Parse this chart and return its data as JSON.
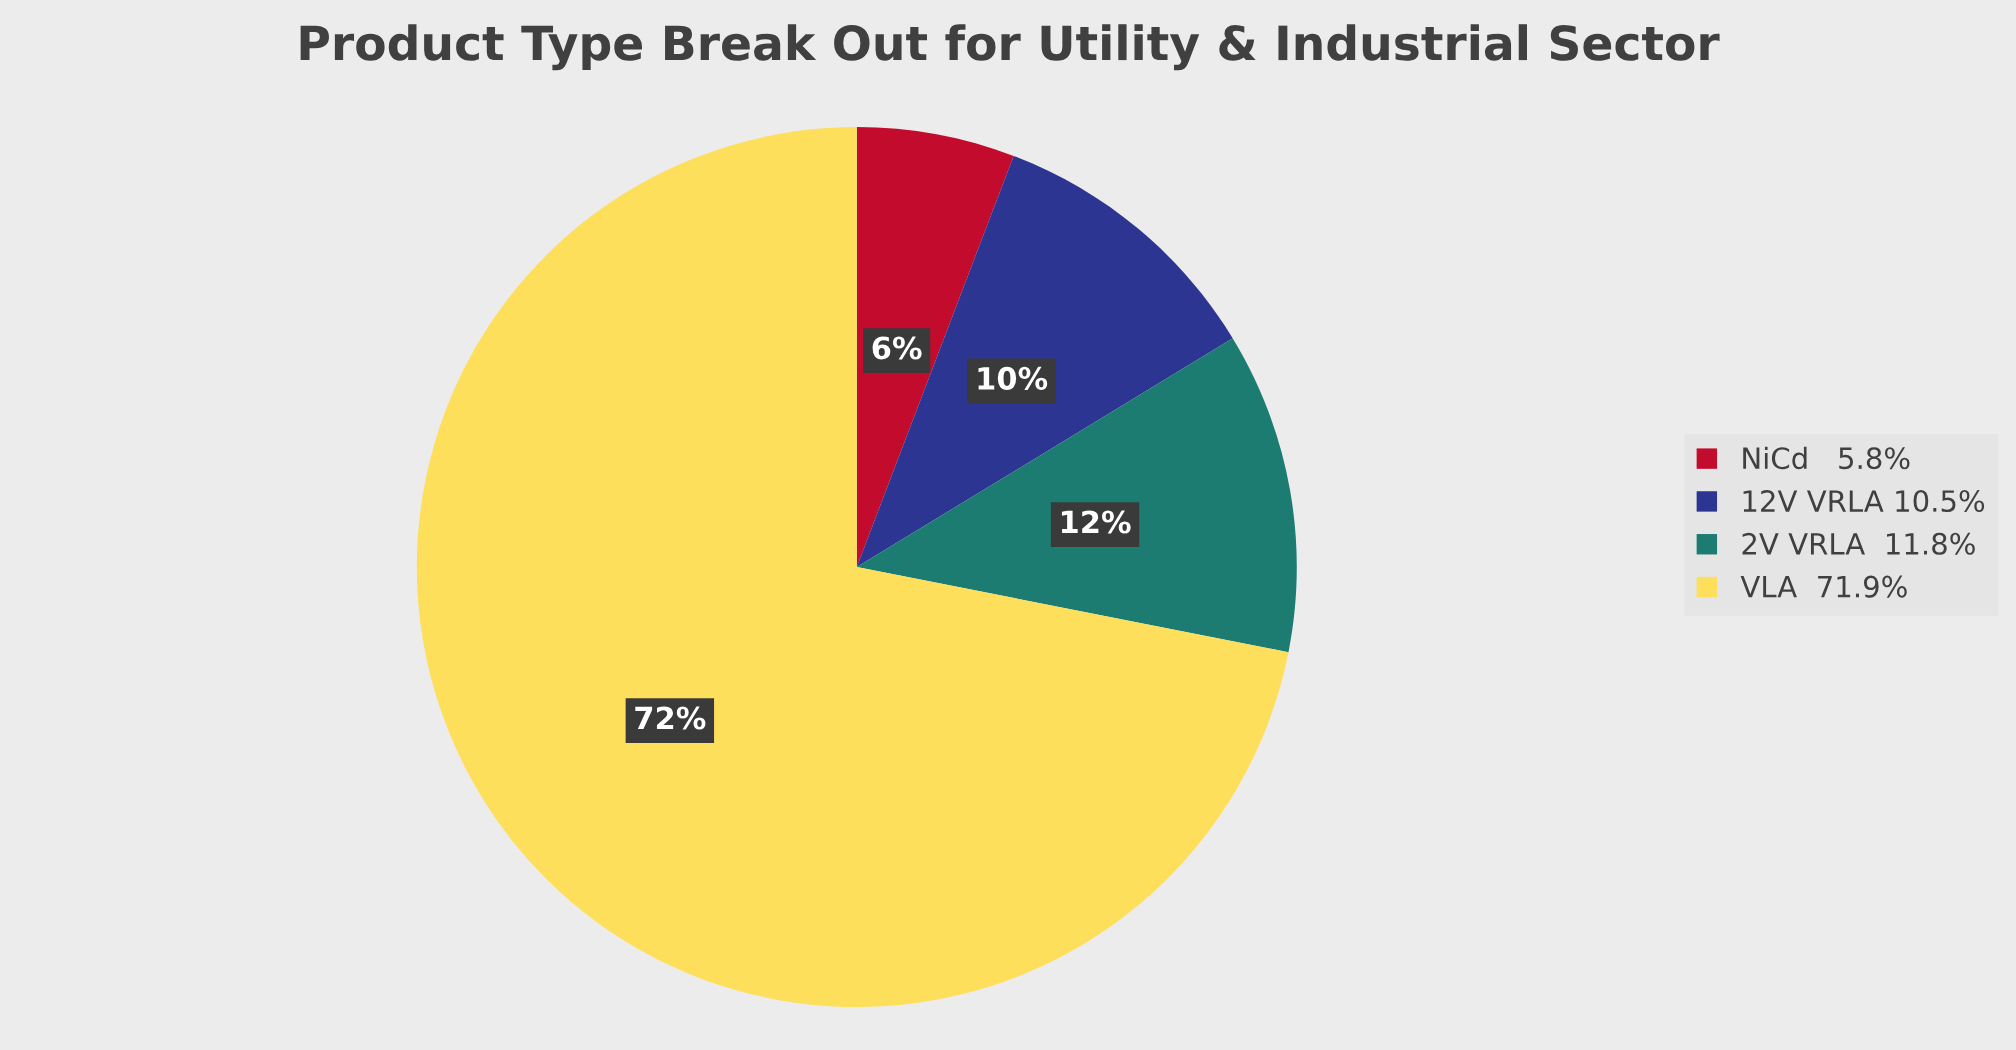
{
  "chart_data": {
    "type": "pie",
    "title": "Product Type Break Out for Utility & Industrial Sector",
    "categories": [
      "NiCd   5.8%",
      "12V VRLA 10.5%",
      "2V VRLA  11.8%",
      "VLA  71.9%"
    ],
    "values": [
      5.8,
      10.5,
      11.8,
      71.9
    ],
    "colors": [
      "#c30b2e",
      "#2c3592",
      "#1d7c72",
      "#fddf5c"
    ],
    "value_labels": [
      "6%",
      "10%",
      "12%",
      "72%"
    ],
    "legend": "right"
  }
}
